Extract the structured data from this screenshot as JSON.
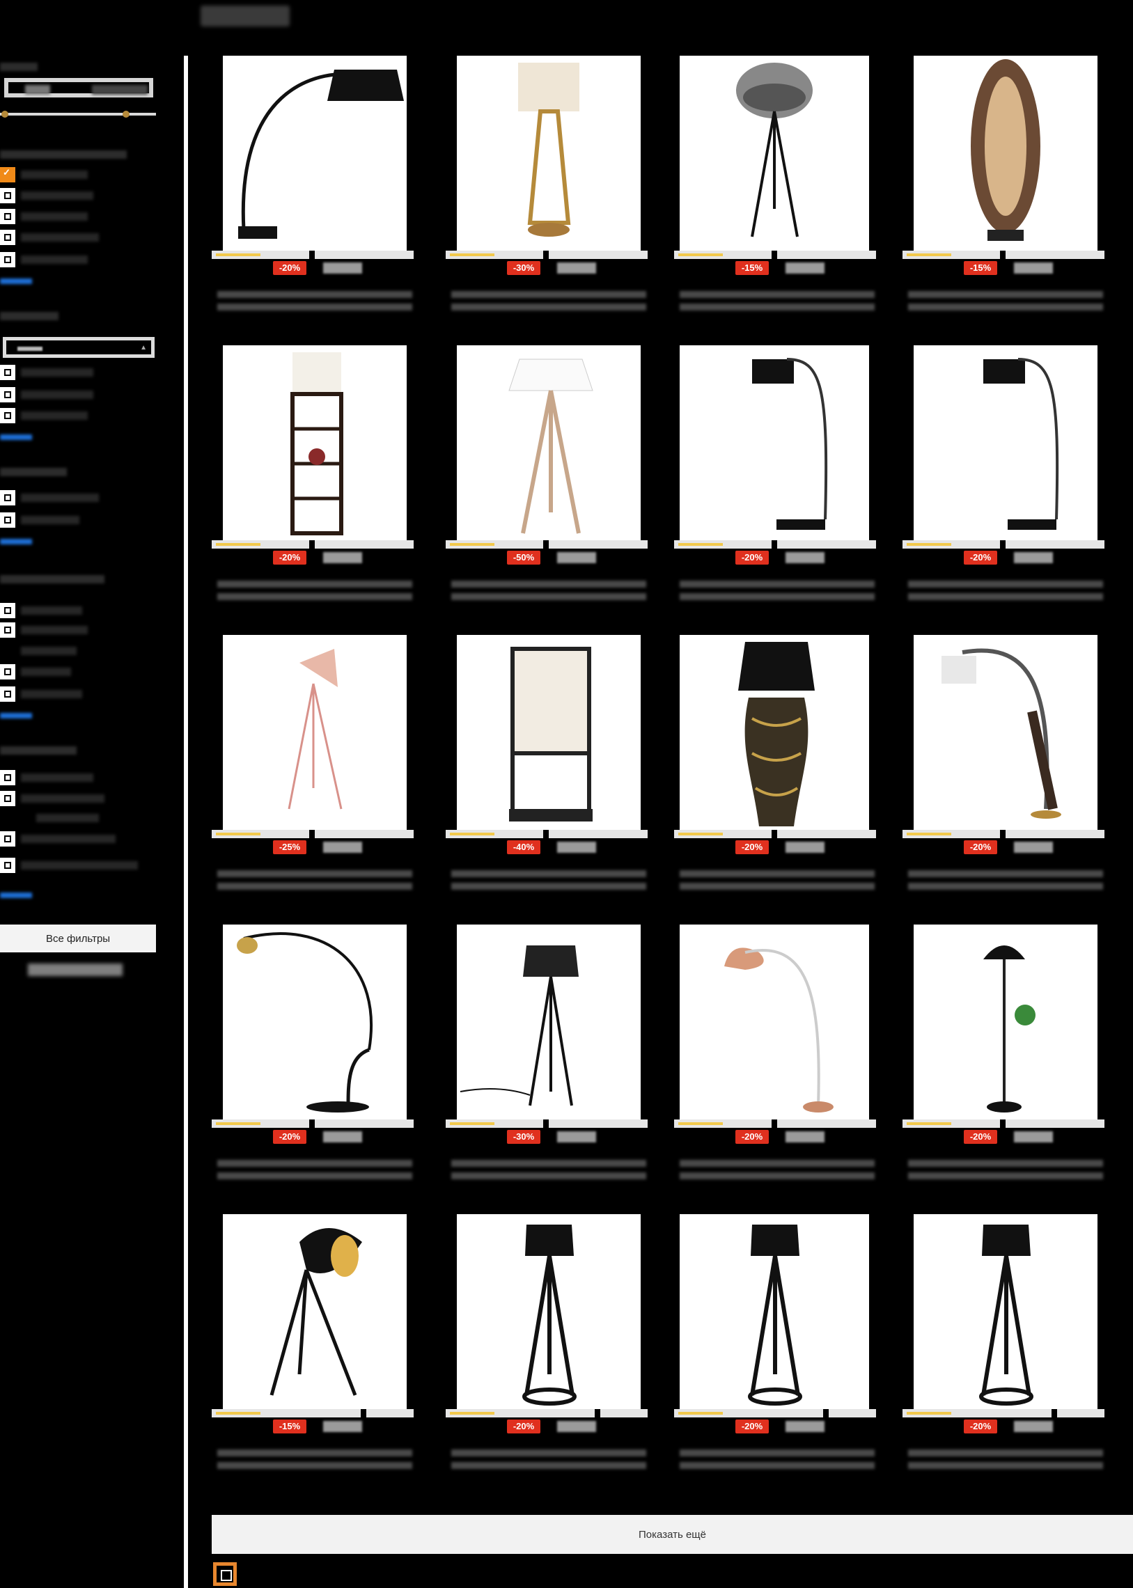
{
  "sidebar": {
    "all_filters_label": "Все фильтры"
  },
  "grid": {
    "show_more_label": "Показать ещё",
    "products": [
      {
        "discount": "-20%",
        "lamp": "arc"
      },
      {
        "discount": "-30%",
        "lamp": "table-gold"
      },
      {
        "discount": "-15%",
        "lamp": "tripod-mesh"
      },
      {
        "discount": "-15%",
        "lamp": "rattan"
      },
      {
        "discount": "-20%",
        "lamp": "shelf"
      },
      {
        "discount": "-50%",
        "lamp": "wood-tripod"
      },
      {
        "discount": "-20%",
        "lamp": "reading-arc"
      },
      {
        "discount": "-20%",
        "lamp": "reading-arc"
      },
      {
        "discount": "-25%",
        "lamp": "pink-tripod"
      },
      {
        "discount": "-40%",
        "lamp": "marble-cube"
      },
      {
        "discount": "-20%",
        "lamp": "torso"
      },
      {
        "discount": "-20%",
        "lamp": "bronze-arc"
      },
      {
        "discount": "-20%",
        "lamp": "gold-arc"
      },
      {
        "discount": "-30%",
        "lamp": "black-tripod-shade"
      },
      {
        "discount": "-20%",
        "lamp": "copper-arc"
      },
      {
        "discount": "-20%",
        "lamp": "dome-plant"
      },
      {
        "discount": "-15%",
        "lamp": "spot-tripod"
      },
      {
        "discount": "-20%",
        "lamp": "pyramid"
      },
      {
        "discount": "-20%",
        "lamp": "pyramid"
      },
      {
        "discount": "-20%",
        "lamp": "pyramid"
      }
    ]
  },
  "colors": {
    "discount_badge": "#e0301e",
    "checkbox_checked": "#f08a18",
    "link_more": "#1e6fd6",
    "rating_fill": "#f2c94c"
  }
}
